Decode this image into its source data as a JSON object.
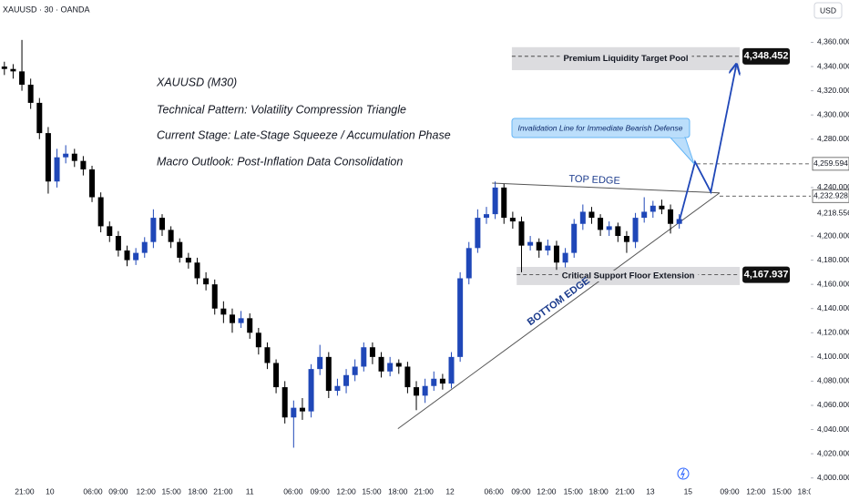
{
  "chart_data": {
    "type": "candlestick",
    "title": "XAUUSD · 30 · OANDA",
    "currency": "USD",
    "notes": [
      "XAUUSD (M30)",
      "Technical Pattern: Volatility Compression Triangle",
      "Current Stage: Late-Stage Squeeze / Accumulation Phase",
      "Macro Outlook: Post-Inflation Data Consolidation"
    ],
    "x": [
      1,
      3,
      5,
      7,
      9,
      11,
      13,
      15,
      17,
      19,
      21,
      23,
      25,
      27,
      29,
      31,
      33,
      35,
      37,
      39,
      41,
      43,
      45,
      47,
      49,
      51,
      53,
      55,
      57,
      59,
      61,
      63,
      65,
      67,
      69,
      71,
      73,
      75,
      77,
      79,
      81,
      83,
      85,
      87,
      89,
      91,
      93,
      95,
      97,
      99,
      101,
      103,
      105,
      107,
      109,
      111,
      113,
      115,
      117,
      119,
      121,
      123,
      125,
      127,
      129,
      131,
      133,
      135,
      137,
      139,
      141,
      143,
      145,
      147,
      149,
      151,
      153,
      155
    ],
    "open": [
      4340,
      4338,
      4336,
      4325,
      4310,
      4285,
      4245,
      4265,
      4268,
      4262,
      4255,
      4232,
      4208,
      4200,
      4188,
      4180,
      4186,
      4195,
      4215,
      4205,
      4195,
      4182,
      4178,
      4165,
      4160,
      4140,
      4135,
      4128,
      4132,
      4120,
      4108,
      4095,
      4075,
      4050,
      4058,
      4055,
      4090,
      4100,
      4072,
      4076,
      4085,
      4092,
      4108,
      4100,
      4088,
      4095,
      4092,
      4075,
      4068,
      4076,
      4082,
      4078,
      4100,
      4165,
      4190,
      4215,
      4218,
      4240,
      4215,
      4212,
      4192,
      4195,
      4188,
      4192,
      4178,
      4186,
      4210,
      4220,
      4215,
      4205,
      4208,
      4200,
      4195,
      4215,
      4220,
      4225,
      4222,
      4210
    ],
    "high": [
      4344,
      4342,
      4362,
      4330,
      4314,
      4290,
      4272,
      4275,
      4272,
      4266,
      4258,
      4236,
      4212,
      4204,
      4192,
      4190,
      4199,
      4222,
      4218,
      4208,
      4198,
      4186,
      4182,
      4170,
      4164,
      4146,
      4140,
      4138,
      4136,
      4124,
      4112,
      4098,
      4080,
      4064,
      4066,
      4094,
      4110,
      4104,
      4082,
      4090,
      4098,
      4112,
      4112,
      4104,
      4100,
      4098,
      4096,
      4080,
      4082,
      4088,
      4086,
      4104,
      4170,
      4195,
      4222,
      4224,
      4245,
      4243,
      4220,
      4216,
      4200,
      4198,
      4197,
      4196,
      4190,
      4214,
      4226,
      4224,
      4218,
      4212,
      4211,
      4204,
      4219,
      4232,
      4229,
      4230,
      4226,
      4218
    ],
    "low": [
      4333,
      4330,
      4320,
      4305,
      4280,
      4235,
      4240,
      4260,
      4257,
      4250,
      4228,
      4203,
      4195,
      4183,
      4175,
      4176,
      4182,
      4190,
      4200,
      4190,
      4178,
      4173,
      4160,
      4155,
      4135,
      4128,
      4120,
      4124,
      4115,
      4102,
      4090,
      4070,
      4045,
      4025,
      4048,
      4050,
      4085,
      4066,
      4068,
      4070,
      4080,
      4088,
      4094,
      4083,
      4084,
      4086,
      4070,
      4056,
      4062,
      4072,
      4073,
      4074,
      4096,
      4160,
      4186,
      4210,
      4214,
      4210,
      4206,
      4170,
      4188,
      4182,
      4184,
      4172,
      4174,
      4182,
      4205,
      4210,
      4200,
      4200,
      4195,
      4186,
      4190,
      4211,
      4215,
      4218,
      4202,
      4206
    ],
    "close": [
      4338,
      4336,
      4325,
      4310,
      4285,
      4245,
      4265,
      4268,
      4262,
      4255,
      4232,
      4208,
      4200,
      4188,
      4180,
      4186,
      4195,
      4215,
      4205,
      4195,
      4182,
      4178,
      4165,
      4160,
      4140,
      4135,
      4128,
      4132,
      4120,
      4108,
      4095,
      4075,
      4050,
      4058,
      4055,
      4090,
      4100,
      4072,
      4076,
      4085,
      4092,
      4108,
      4100,
      4088,
      4095,
      4092,
      4075,
      4068,
      4076,
      4082,
      4078,
      4100,
      4165,
      4190,
      4215,
      4218,
      4240,
      4215,
      4212,
      4192,
      4195,
      4188,
      4192,
      4178,
      4186,
      4210,
      4220,
      4215,
      4205,
      4208,
      4200,
      4195,
      4215,
      4220,
      4225,
      4222,
      4210,
      4214
    ],
    "up_color": "#1f47b8",
    "down_color": "#000000",
    "grid": false,
    "xlim": [
      0,
      185
    ],
    "xticks": [
      {
        "value": 5.6,
        "label": "21:00"
      },
      {
        "value": 11.4,
        "label": "10"
      },
      {
        "value": 21.2,
        "label": "06:00"
      },
      {
        "value": 27,
        "label": "09:00"
      },
      {
        "value": 33.3,
        "label": "12:00"
      },
      {
        "value": 39.1,
        "label": "15:00"
      },
      {
        "value": 45.1,
        "label": "18:00"
      },
      {
        "value": 50.9,
        "label": "21:00"
      },
      {
        "value": 57,
        "label": "11"
      },
      {
        "value": 66.9,
        "label": "06:00"
      },
      {
        "value": 73,
        "label": "09:00"
      },
      {
        "value": 79,
        "label": "12:00"
      },
      {
        "value": 84.8,
        "label": "15:00"
      },
      {
        "value": 90.8,
        "label": "18:00"
      },
      {
        "value": 96.7,
        "label": "21:00"
      },
      {
        "value": 102.7,
        "label": "12"
      },
      {
        "value": 112.7,
        "label": "06:00"
      },
      {
        "value": 118.9,
        "label": "09:00"
      },
      {
        "value": 124.7,
        "label": "12:00"
      },
      {
        "value": 130.8,
        "label": "15:00"
      },
      {
        "value": 136.6,
        "label": "18:00"
      },
      {
        "value": 142.6,
        "label": "21:00"
      },
      {
        "value": 148.4,
        "label": "13"
      },
      {
        "value": 157,
        "label": "15"
      },
      {
        "value": 166.5,
        "label": "09:00"
      },
      {
        "value": 172.5,
        "label": "12:00"
      },
      {
        "value": 178.4,
        "label": "15:00"
      },
      {
        "value": 184.2,
        "label": "18:00"
      }
    ],
    "ylim": [
      3996,
      4395
    ],
    "yticks": [
      {
        "value": 4360,
        "label": "4,360.000"
      },
      {
        "value": 4340,
        "label": "4,340.000"
      },
      {
        "value": 4320,
        "label": "4,320.000"
      },
      {
        "value": 4300,
        "label": "4,300.000"
      },
      {
        "value": 4280,
        "label": "4,280.000"
      },
      {
        "value": 4240,
        "label": "4,240.000"
      },
      {
        "value": 4200,
        "label": "4,200.000"
      },
      {
        "value": 4180,
        "label": "4,180.000"
      },
      {
        "value": 4160,
        "label": "4,160.000"
      },
      {
        "value": 4140,
        "label": "4,140.000"
      },
      {
        "value": 4120,
        "label": "4,120.000"
      },
      {
        "value": 4100,
        "label": "4,100.000"
      },
      {
        "value": 4080,
        "label": "4,080.000"
      },
      {
        "value": 4060,
        "label": "4,060.000"
      },
      {
        "value": 4040,
        "label": "4,040.000"
      },
      {
        "value": 4020,
        "label": "4,020.000"
      },
      {
        "value": 4000,
        "label": "4,000.000"
      }
    ],
    "zones": [
      {
        "label": "Premium Liquidity Target Pool",
        "range": [
          4337,
          4356
        ],
        "span": [
          116.8,
          168.8
        ]
      },
      {
        "label": "Critical Support Floor Extension",
        "range": [
          4159.4,
          4174.4
        ],
        "span": [
          117.9,
          168.8
        ]
      }
    ],
    "levels": [
      {
        "value": 4348.452,
        "label": "4,348.452",
        "style": "dark",
        "span": [
          116.8,
          168.8
        ]
      },
      {
        "value": 4259.594,
        "label": "4,259.594",
        "style": "light",
        "span": [
          159,
          185
        ]
      },
      {
        "value": 4232.928,
        "label": "4,232.928",
        "style": "light",
        "span": [
          164.2,
          185
        ]
      },
      {
        "value": 4167.937,
        "label": "4,167.937",
        "style": "dark",
        "span": [
          117.9,
          168.8
        ]
      }
    ],
    "last_price": {
      "value": 4218.556,
      "label": "4,218.556"
    },
    "trendlines": [
      {
        "label": "TOP EDGE",
        "x": [
          112.3,
          164.2
        ],
        "y": [
          4243.7,
          4235.6
        ]
      },
      {
        "label": "BOTTOM EDGE",
        "x": [
          90.8,
          164.2
        ],
        "y": [
          4040.7,
          4235.6
        ]
      }
    ],
    "projection": {
      "color": "#1f47b8",
      "x": [
        154.9,
        158.6,
        162.2,
        168
      ],
      "y": [
        4210.8,
        4261.2,
        4236.4,
        4341
      ]
    },
    "callout": "Invalidation Line for Immediate Bearish Defense"
  }
}
